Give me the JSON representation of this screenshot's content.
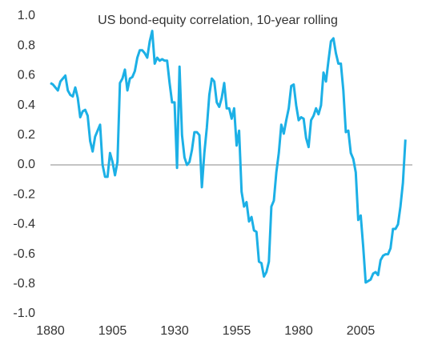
{
  "chart_data": {
    "type": "line",
    "title": "US bond-equity correlation, 10-year rolling",
    "x": [
      1880,
      1881,
      1882,
      1883,
      1884,
      1885,
      1886,
      1887,
      1888,
      1889,
      1890,
      1891,
      1892,
      1893,
      1894,
      1895,
      1896,
      1897,
      1898,
      1899,
      1900,
      1901,
      1902,
      1903,
      1904,
      1905,
      1906,
      1907,
      1908,
      1909,
      1910,
      1911,
      1912,
      1913,
      1914,
      1915,
      1916,
      1917,
      1918,
      1919,
      1920,
      1921,
      1922,
      1923,
      1924,
      1925,
      1926,
      1927,
      1928,
      1929,
      1930,
      1931,
      1932,
      1933,
      1934,
      1935,
      1936,
      1937,
      1938,
      1939,
      1940,
      1941,
      1942,
      1943,
      1944,
      1945,
      1946,
      1947,
      1948,
      1949,
      1950,
      1951,
      1952,
      1953,
      1954,
      1955,
      1956,
      1957,
      1958,
      1959,
      1960,
      1961,
      1962,
      1963,
      1964,
      1965,
      1966,
      1967,
      1968,
      1969,
      1970,
      1971,
      1972,
      1973,
      1974,
      1975,
      1976,
      1977,
      1978,
      1979,
      1980,
      1981,
      1982,
      1983,
      1984,
      1985,
      1986,
      1987,
      1988,
      1989,
      1990,
      1991,
      1992,
      1993,
      1994,
      1995,
      1996,
      1997,
      1998,
      1999,
      2000,
      2001,
      2002,
      2003,
      2004,
      2005,
      2006,
      2007,
      2008,
      2009,
      2010,
      2011,
      2012,
      2013,
      2014,
      2015,
      2016,
      2017,
      2018,
      2019,
      2020,
      2021,
      2022,
      2023
    ],
    "series": [
      {
        "name": "US bond-equity correlation",
        "color": "#1cb0e6",
        "values": [
          0.55,
          0.54,
          0.52,
          0.5,
          0.56,
          0.58,
          0.6,
          0.5,
          0.47,
          0.46,
          0.52,
          0.45,
          0.32,
          0.36,
          0.37,
          0.33,
          0.16,
          0.09,
          0.19,
          0.23,
          0.27,
          0.0,
          -0.08,
          -0.08,
          0.08,
          0.02,
          -0.07,
          0.02,
          0.55,
          0.58,
          0.64,
          0.5,
          0.58,
          0.59,
          0.63,
          0.72,
          0.77,
          0.77,
          0.75,
          0.72,
          0.83,
          0.9,
          0.68,
          0.72,
          0.7,
          0.71,
          0.7,
          0.7,
          0.55,
          0.42,
          0.42,
          -0.02,
          0.66,
          0.2,
          0.05,
          0.0,
          0.02,
          0.1,
          0.22,
          0.22,
          0.2,
          -0.15,
          0.08,
          0.25,
          0.47,
          0.58,
          0.56,
          0.42,
          0.39,
          0.45,
          0.55,
          0.38,
          0.38,
          0.31,
          0.38,
          0.13,
          0.23,
          -0.18,
          -0.28,
          -0.25,
          -0.38,
          -0.35,
          -0.44,
          -0.45,
          -0.65,
          -0.66,
          -0.75,
          -0.72,
          -0.65,
          -0.28,
          -0.24,
          -0.05,
          0.08,
          0.27,
          0.21,
          0.3,
          0.38,
          0.53,
          0.54,
          0.4,
          0.3,
          0.32,
          0.31,
          0.18,
          0.12,
          0.3,
          0.33,
          0.38,
          0.34,
          0.4,
          0.62,
          0.56,
          0.7,
          0.83,
          0.85,
          0.75,
          0.68,
          0.68,
          0.5,
          0.22,
          0.23,
          0.08,
          0.04,
          -0.05,
          -0.37,
          -0.34,
          -0.55,
          -0.79,
          -0.78,
          -0.77,
          -0.73,
          -0.72,
          -0.74,
          -0.64,
          -0.61,
          -0.6,
          -0.6,
          -0.56,
          -0.43,
          -0.43,
          -0.4,
          -0.28,
          -0.12,
          0.17
        ]
      }
    ],
    "xlim": [
      1880,
      2034
    ],
    "ylim": [
      -1,
      1
    ],
    "xticks": [
      1880,
      1905,
      1930,
      1955,
      1980,
      2005
    ],
    "yticks": [
      {
        "value": 1,
        "label": "1.0"
      },
      0.8,
      0.6,
      0.4,
      0.2,
      {
        "value": 0,
        "label": "0.0"
      },
      -0.2,
      -0.4,
      -0.6,
      -0.8,
      {
        "value": -1,
        "label": "-1.0"
      }
    ],
    "zero_line": true
  }
}
